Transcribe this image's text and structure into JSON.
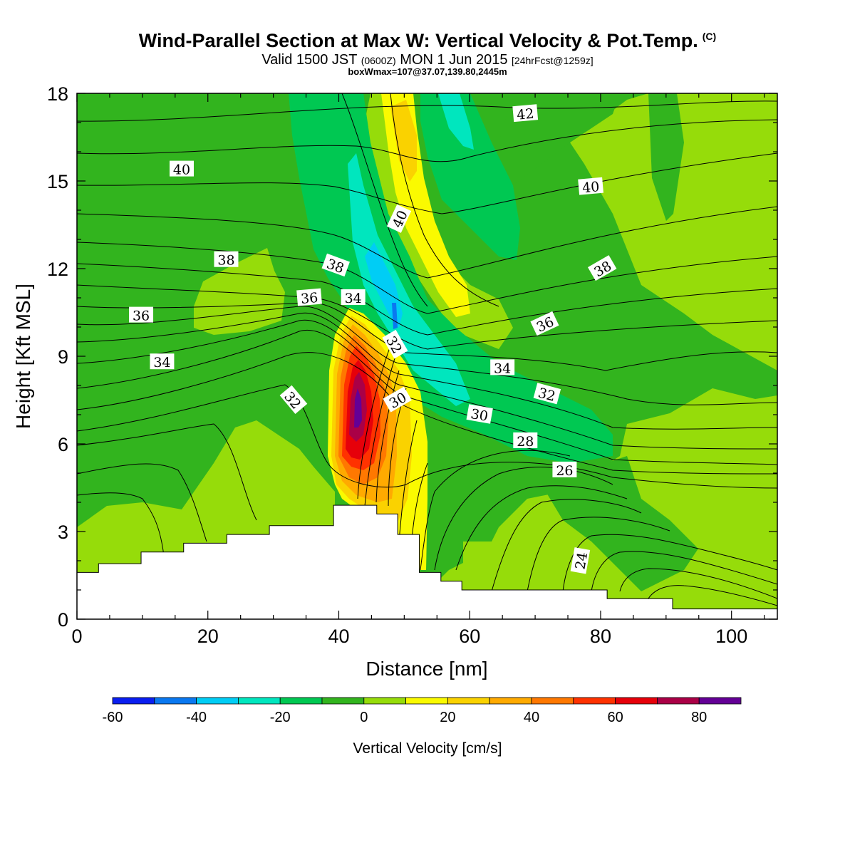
{
  "header": {
    "title": "Wind-Parallel Section at Max W: Vertical Velocity & Pot.Temp.",
    "title_mark": "(C)",
    "subtitle_main": "Valid 1500 JST",
    "subtitle_utc": "(0600Z)",
    "subtitle_date": "MON 1 Jun 2015",
    "subtitle_fcst": "[24hrFcst@1259z]",
    "box_info": "boxWmax=107@37.07,139.80,2445m"
  },
  "chart_data": {
    "type": "heatmap",
    "xlabel": "Distance [nm]",
    "ylabel": "Height [Kft MSL]",
    "xlim": [
      0,
      107
    ],
    "ylim": [
      0,
      18
    ],
    "x_ticks": [
      0,
      20,
      40,
      60,
      80,
      100
    ],
    "y_ticks": [
      0,
      3,
      6,
      9,
      12,
      15,
      18
    ],
    "colorbar": {
      "title": "Vertical Velocity [cm/s]",
      "levels": [
        -60,
        -50,
        -40,
        -30,
        -20,
        -10,
        0,
        10,
        20,
        30,
        40,
        50,
        60,
        70,
        80,
        90
      ],
      "tick_labels": [
        "-60",
        "-40",
        "-20",
        "0",
        "20",
        "40",
        "60",
        "80"
      ],
      "tick_values": [
        -60,
        -40,
        -20,
        0,
        20,
        40,
        60,
        80
      ],
      "colors": [
        "#0a1ef0",
        "#0a78f0",
        "#00cdf5",
        "#00e6be",
        "#00c852",
        "#32b41e",
        "#96dc0a",
        "#fafa00",
        "#fad200",
        "#ffaa00",
        "#ff7800",
        "#ff3200",
        "#e6000a",
        "#aa0046",
        "#640096"
      ]
    },
    "terrain": [
      [
        0,
        1.6
      ],
      [
        3.3,
        1.6
      ],
      [
        3.3,
        1.9
      ],
      [
        9.8,
        1.9
      ],
      [
        9.8,
        2.3
      ],
      [
        16.3,
        2.3
      ],
      [
        16.3,
        2.6
      ],
      [
        22.9,
        2.6
      ],
      [
        22.9,
        2.9
      ],
      [
        29.4,
        2.9
      ],
      [
        29.4,
        3.2
      ],
      [
        39.2,
        3.2
      ],
      [
        39.2,
        3.9
      ],
      [
        42.5,
        3.9
      ],
      [
        42.5,
        3.9
      ],
      [
        45.8,
        3.9
      ],
      [
        45.8,
        3.6
      ],
      [
        49.0,
        3.6
      ],
      [
        49.0,
        2.9
      ],
      [
        52.3,
        2.9
      ],
      [
        52.3,
        1.6
      ],
      [
        55.6,
        1.6
      ],
      [
        55.6,
        1.3
      ],
      [
        58.8,
        1.3
      ],
      [
        58.8,
        1.0
      ],
      [
        81.0,
        1.0
      ],
      [
        81.0,
        0.7
      ],
      [
        91.0,
        0.7
      ],
      [
        91.0,
        0.35
      ],
      [
        107,
        0.35
      ]
    ],
    "theta_labels": [
      {
        "text": "42",
        "x": 68.5,
        "y": 17.3,
        "angle": -5
      },
      {
        "text": "40",
        "x": 16.0,
        "y": 15.4,
        "angle": 0
      },
      {
        "text": "40",
        "x": 78.5,
        "y": 14.8,
        "angle": -5
      },
      {
        "text": "40",
        "x": 49.3,
        "y": 13.7,
        "angle": -65
      },
      {
        "text": "38",
        "x": 22.8,
        "y": 12.3,
        "angle": 0
      },
      {
        "text": "38",
        "x": 39.5,
        "y": 12.1,
        "angle": 20
      },
      {
        "text": "38",
        "x": 80.3,
        "y": 12.0,
        "angle": -30
      },
      {
        "text": "36",
        "x": 9.8,
        "y": 10.4,
        "angle": 0
      },
      {
        "text": "36",
        "x": 35.5,
        "y": 11.0,
        "angle": -5
      },
      {
        "text": "34",
        "x": 42.2,
        "y": 11.0,
        "angle": 0
      },
      {
        "text": "36",
        "x": 71.5,
        "y": 10.1,
        "angle": -25
      },
      {
        "text": "32",
        "x": 48.5,
        "y": 9.4,
        "angle": 60
      },
      {
        "text": "34",
        "x": 13.0,
        "y": 8.8,
        "angle": 0
      },
      {
        "text": "34",
        "x": 65.0,
        "y": 8.6,
        "angle": 0
      },
      {
        "text": "32",
        "x": 33.0,
        "y": 7.5,
        "angle": 50
      },
      {
        "text": "30",
        "x": 49.0,
        "y": 7.5,
        "angle": -30
      },
      {
        "text": "32",
        "x": 71.8,
        "y": 7.7,
        "angle": 15
      },
      {
        "text": "30",
        "x": 61.5,
        "y": 7.0,
        "angle": 10
      },
      {
        "text": "28",
        "x": 68.5,
        "y": 6.1,
        "angle": 0
      },
      {
        "text": "26",
        "x": 74.5,
        "y": 5.1,
        "angle": 0
      },
      {
        "text": "24",
        "x": 77.0,
        "y": 2.0,
        "angle": -80
      }
    ]
  }
}
